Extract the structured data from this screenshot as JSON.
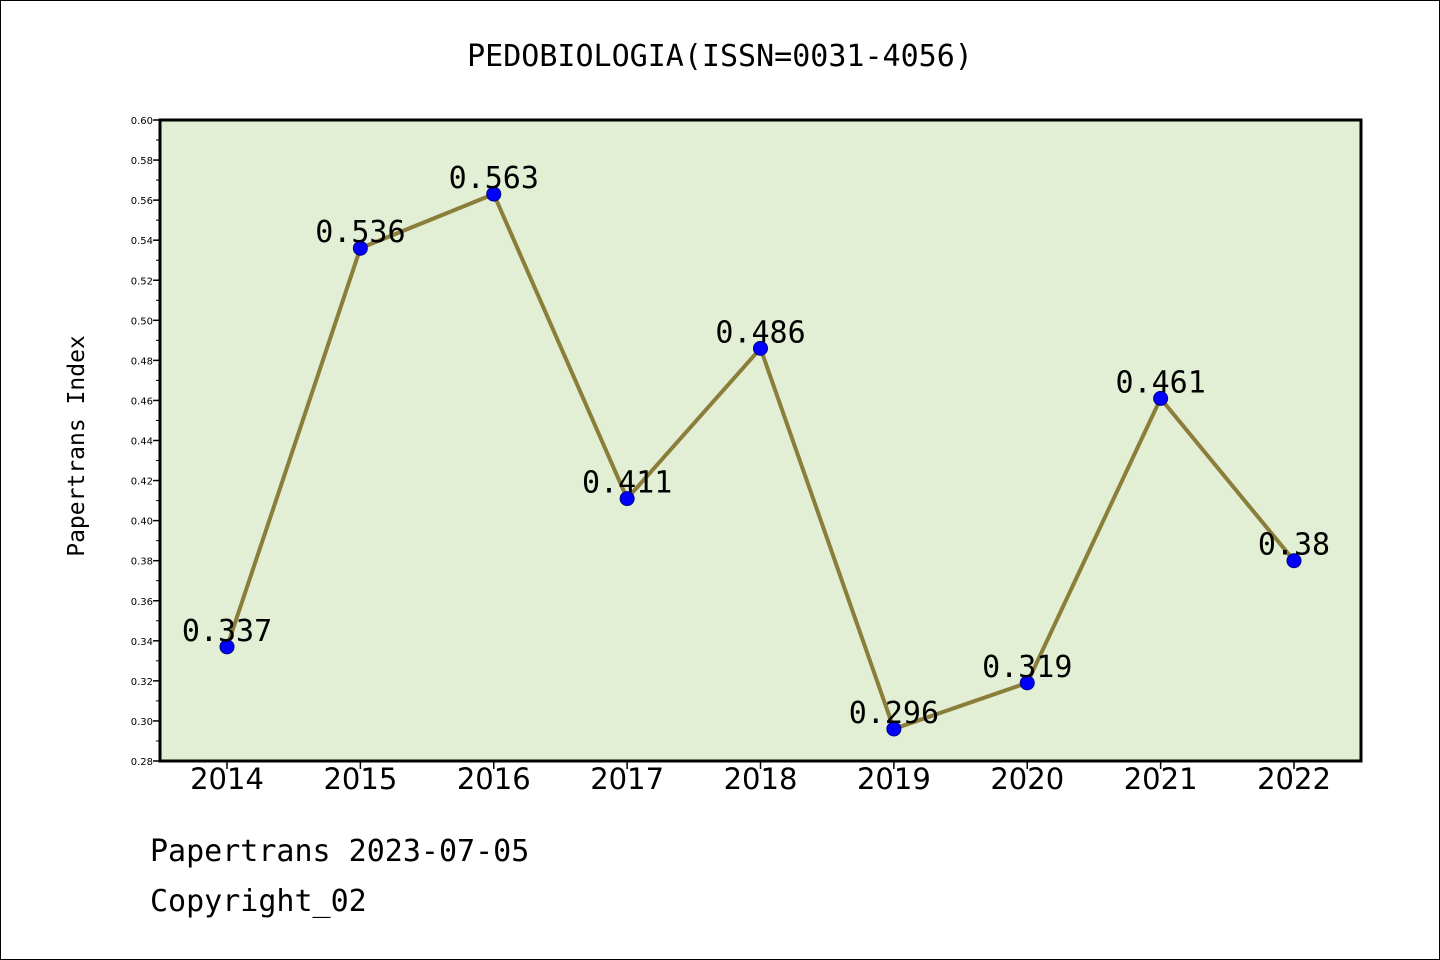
{
  "chart_data": {
    "type": "line",
    "title": "PEDOBIOLOGIA(ISSN=0031-4056)",
    "ylabel": "Papertrans Index",
    "xlabel": "",
    "categories": [
      "2014",
      "2015",
      "2016",
      "2017",
      "2018",
      "2019",
      "2020",
      "2021",
      "2022"
    ],
    "values": [
      0.337,
      0.536,
      0.563,
      0.411,
      0.486,
      0.296,
      0.319,
      0.461,
      0.38
    ],
    "data_labels": [
      "0.337",
      "0.536",
      "0.563",
      "0.411",
      "0.486",
      "0.296",
      "0.319",
      "0.461",
      "0.38"
    ],
    "ylim": [
      0.28,
      0.6
    ],
    "yticks": [
      "0.28",
      "0.30",
      "0.32",
      "0.34",
      "0.36",
      "0.38",
      "0.40",
      "0.42",
      "0.44",
      "0.46",
      "0.48",
      "0.50",
      "0.52",
      "0.54",
      "0.56",
      "0.58",
      "0.60"
    ],
    "grid": false,
    "colors": {
      "plot_background": "#e2efd4",
      "line": "#8b7d3a",
      "marker": "#0000ff"
    }
  },
  "footer": {
    "line1": "Papertrans 2023-07-05",
    "line2": "Copyright_02"
  }
}
